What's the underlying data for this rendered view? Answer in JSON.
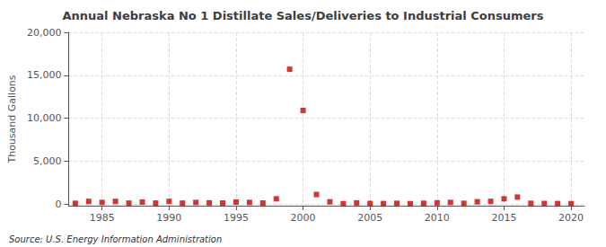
{
  "chart_data": {
    "type": "scatter",
    "title": "Annual Nebraska No 1 Distillate Sales/Deliveries to Industrial Consumers",
    "ylabel": "Thousand Gallons",
    "annotation": "Source: U.S. Energy Information Administration",
    "x": [
      1983,
      1984,
      1985,
      1986,
      1987,
      1988,
      1989,
      1990,
      1991,
      1992,
      1993,
      1994,
      1995,
      1996,
      1997,
      1998,
      1999,
      2000,
      2001,
      2002,
      2003,
      2004,
      2005,
      2006,
      2007,
      2008,
      2009,
      2010,
      2011,
      2012,
      2013,
      2014,
      2015,
      2016,
      2017,
      2018,
      2019,
      2020
    ],
    "values": [
      80,
      300,
      180,
      300,
      100,
      220,
      110,
      300,
      100,
      180,
      130,
      110,
      220,
      180,
      110,
      600,
      15700,
      10900,
      1100,
      250,
      40,
      130,
      60,
      50,
      80,
      40,
      80,
      130,
      180,
      80,
      260,
      300,
      600,
      800,
      80,
      60,
      50,
      40
    ],
    "color": "#cc0000",
    "marker": "square",
    "xlim": [
      1982.5,
      2021
    ],
    "ylim": [
      -200,
      20000
    ],
    "xticks": [
      1985,
      1990,
      1995,
      2000,
      2005,
      2010,
      2015,
      2020
    ],
    "yticks": [
      0,
      {
        "value": 5000,
        "label": "5,000"
      },
      {
        "value": 10000,
        "label": "10,000"
      },
      {
        "value": 15000,
        "label": "15,000"
      },
      {
        "value": 20000,
        "label": "20,000"
      }
    ],
    "grid": true
  }
}
